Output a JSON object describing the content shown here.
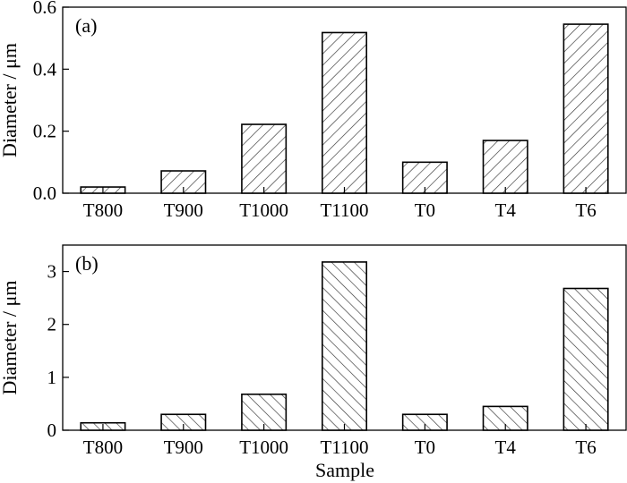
{
  "figure": {
    "x_axis_title": "Sample"
  },
  "colors": {
    "hatch": "#333333",
    "frame": "#000000",
    "background": "#ffffff"
  },
  "chart_data": [
    {
      "type": "bar",
      "panel_label": "(a)",
      "ylabel": "Diameter / μm",
      "ylim": [
        0,
        0.6
      ],
      "yticks": [
        0.0,
        0.2,
        0.4,
        0.6
      ],
      "ytick_labels": [
        "0.0",
        "0.2",
        "0.4",
        "0.6"
      ],
      "hatch": "forward-diagonal",
      "categories": [
        "T800",
        "T900",
        "T1000",
        "T1100",
        "T0",
        "T4",
        "T6"
      ],
      "values": [
        0.02,
        0.072,
        0.222,
        0.518,
        0.1,
        0.17,
        0.545
      ]
    },
    {
      "type": "bar",
      "panel_label": "(b)",
      "ylabel": "Diameter / μm",
      "ylim": [
        0,
        3.5
      ],
      "yticks": [
        0,
        1,
        2,
        3
      ],
      "ytick_labels": [
        "0",
        "1",
        "2",
        "3"
      ],
      "hatch": "back-diagonal",
      "categories": [
        "T800",
        "T900",
        "T1000",
        "T1100",
        "T0",
        "T4",
        "T6"
      ],
      "values": [
        0.14,
        0.3,
        0.68,
        3.18,
        0.3,
        0.45,
        2.68
      ]
    }
  ]
}
